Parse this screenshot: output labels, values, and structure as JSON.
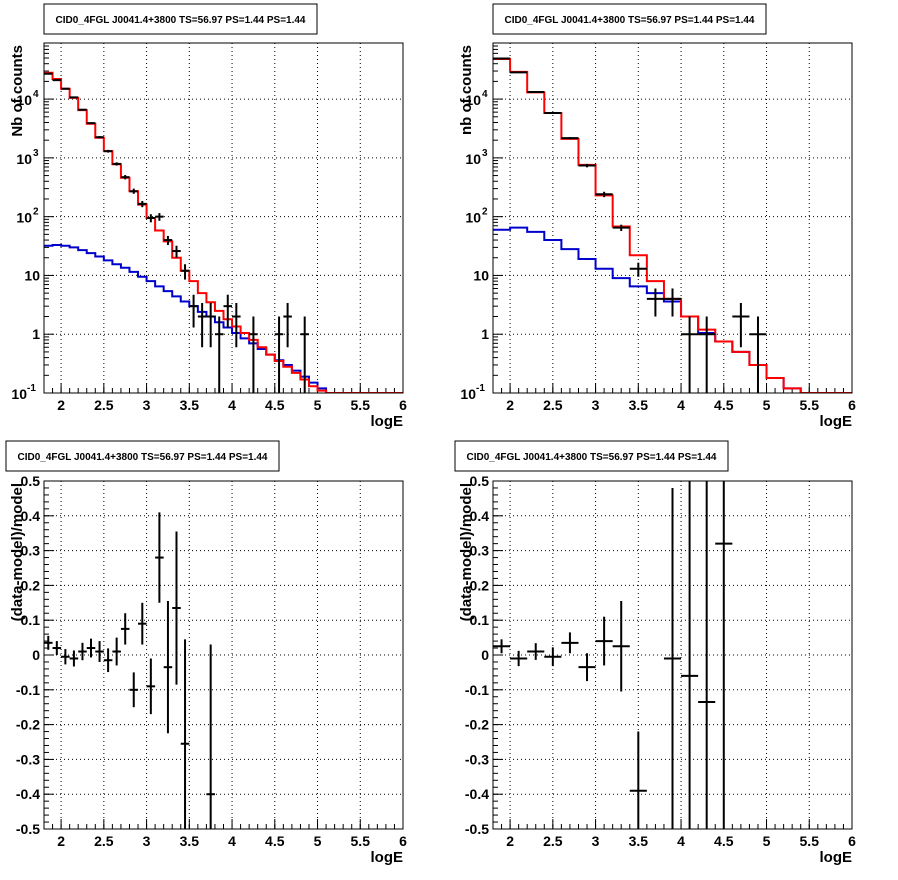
{
  "colors": {
    "data": "#000000",
    "model": "#ff0000",
    "background_model": "#0000cc",
    "grid": "#000000"
  },
  "chart_data": [
    {
      "id": "counts-left",
      "type": "line",
      "title": "CID0_4FGL J0041.4+3800 TS=56.97 PS=1.44 PS=1.44",
      "xlabel": "logE",
      "ylabel": "Nb of counts",
      "xlim": [
        1.8,
        6
      ],
      "ylim": [
        0.1,
        90000
      ],
      "log_y": true,
      "grid": true,
      "x_ticks": [
        "2",
        "2.5",
        "3",
        "3.5",
        "4",
        "4.5",
        "5",
        "5.5",
        "6"
      ],
      "y_ticks": [
        {
          "value": 0.1,
          "base": "10",
          "exp": "-1"
        },
        {
          "value": 1,
          "label": "1"
        },
        {
          "value": 10,
          "label": "10"
        },
        {
          "value": 100,
          "base": "10",
          "exp": "2"
        },
        {
          "value": 1000,
          "base": "10",
          "exp": "3"
        },
        {
          "value": 10000,
          "base": "10",
          "exp": "4"
        }
      ],
      "bin_edges": [
        1.8,
        1.9,
        2.0,
        2.1,
        2.2,
        2.3,
        2.4,
        2.5,
        2.6,
        2.7,
        2.8,
        2.9,
        3.0,
        3.1,
        3.2,
        3.3,
        3.4,
        3.5,
        3.6,
        3.7,
        3.8,
        3.9,
        4.0,
        4.1,
        4.2,
        4.3,
        4.4,
        4.5,
        4.6,
        4.7,
        4.8,
        4.9,
        5.0,
        5.1,
        5.2,
        5.3,
        5.4,
        5.5,
        5.6,
        5.7,
        5.8,
        5.9,
        6.0
      ],
      "series": [
        {
          "role": "model",
          "values": [
            28000,
            22000,
            15000,
            10500,
            6500,
            3800,
            2200,
            1300,
            780,
            460,
            270,
            160,
            95,
            58,
            38,
            20,
            12,
            8,
            5,
            3.5,
            2.5,
            1.8,
            1.35,
            1.05,
            0.8,
            0.6,
            0.45,
            0.35,
            0.28,
            0.22,
            0.17,
            0.13,
            0.11,
            0.1,
            0.1,
            0.1,
            0.1,
            0.1,
            0.1,
            0.1,
            0.1,
            0.1
          ]
        },
        {
          "role": "background_model",
          "values": [
            32,
            33,
            32,
            30,
            27,
            24,
            21,
            18,
            15.5,
            13.5,
            11.5,
            9.5,
            8,
            6.5,
            5.4,
            4.4,
            3.6,
            3,
            2.4,
            2,
            1.6,
            1.3,
            1.05,
            0.85,
            0.7,
            0.56,
            0.45,
            0.36,
            0.3,
            0.24,
            0.19,
            0.15,
            0.12,
            0.1,
            0.1,
            0.1,
            0.1,
            0.1,
            0.1,
            0.1,
            0.1,
            0.1
          ]
        },
        {
          "role": "data",
          "points": [
            {
              "x": 1.85,
              "y": 27000,
              "lo": 26500,
              "hi": 27500
            },
            {
              "x": 1.95,
              "y": 21000,
              "lo": 20600,
              "hi": 21400
            },
            {
              "x": 2.05,
              "y": 15000,
              "lo": 14700,
              "hi": 15300
            },
            {
              "x": 2.15,
              "y": 10700,
              "lo": 10500,
              "hi": 10900
            },
            {
              "x": 2.25,
              "y": 6600,
              "lo": 6450,
              "hi": 6750
            },
            {
              "x": 2.35,
              "y": 3900,
              "lo": 3780,
              "hi": 4020
            },
            {
              "x": 2.45,
              "y": 2250,
              "lo": 2150,
              "hi": 2350
            },
            {
              "x": 2.55,
              "y": 1300,
              "lo": 1230,
              "hi": 1370
            },
            {
              "x": 2.65,
              "y": 790,
              "lo": 740,
              "hi": 840
            },
            {
              "x": 2.75,
              "y": 470,
              "lo": 430,
              "hi": 510
            },
            {
              "x": 2.85,
              "y": 270,
              "lo": 245,
              "hi": 300
            },
            {
              "x": 2.95,
              "y": 165,
              "lo": 145,
              "hi": 185
            },
            {
              "x": 3.05,
              "y": 95,
              "lo": 80,
              "hi": 110
            },
            {
              "x": 3.15,
              "y": 100,
              "lo": 85,
              "hi": 115
            },
            {
              "x": 3.25,
              "y": 40,
              "lo": 33,
              "hi": 47
            },
            {
              "x": 3.35,
              "y": 26,
              "lo": 20,
              "hi": 32
            },
            {
              "x": 3.45,
              "y": 12,
              "lo": 8.5,
              "hi": 15.5
            },
            {
              "x": 3.55,
              "y": 3,
              "lo": 1.3,
              "hi": 4.7
            },
            {
              "x": 3.65,
              "y": 2,
              "lo": 0.6,
              "hi": 3.4
            },
            {
              "x": 3.75,
              "y": 2,
              "lo": 0.6,
              "hi": 3.4
            },
            {
              "x": 3.85,
              "y": 1,
              "lo": 0.1,
              "hi": 2
            },
            {
              "x": 3.95,
              "y": 3,
              "lo": 1.3,
              "hi": 4.7
            },
            {
              "x": 4.05,
              "y": 2,
              "lo": 0.6,
              "hi": 3.4
            },
            {
              "x": 4.25,
              "y": 1,
              "lo": 0.1,
              "hi": 2
            },
            {
              "x": 4.55,
              "y": 1,
              "lo": 0.1,
              "hi": 2
            },
            {
              "x": 4.65,
              "y": 2,
              "lo": 0.6,
              "hi": 3.4
            },
            {
              "x": 4.85,
              "y": 1,
              "lo": 0.1,
              "hi": 2
            }
          ]
        }
      ]
    },
    {
      "id": "counts-right",
      "type": "line",
      "title": "CID0_4FGL J0041.4+3800 TS=56.97 PS=1.44 PS=1.44",
      "xlabel": "logE",
      "ylabel": "nb of counts",
      "xlim": [
        1.8,
        6
      ],
      "ylim": [
        0.1,
        90000
      ],
      "log_y": true,
      "grid": true,
      "x_ticks": [
        "2",
        "2.5",
        "3",
        "3.5",
        "4",
        "4.5",
        "5",
        "5.5",
        "6"
      ],
      "y_ticks": [
        {
          "value": 0.1,
          "base": "10",
          "exp": "-1"
        },
        {
          "value": 1,
          "label": "1"
        },
        {
          "value": 10,
          "label": "10"
        },
        {
          "value": 100,
          "base": "10",
          "exp": "2"
        },
        {
          "value": 1000,
          "base": "10",
          "exp": "3"
        },
        {
          "value": 10000,
          "base": "10",
          "exp": "4"
        }
      ],
      "bin_edges": [
        1.8,
        2.0,
        2.2,
        2.4,
        2.6,
        2.8,
        3.0,
        3.2,
        3.4,
        3.6,
        3.8,
        4.0,
        4.2,
        4.4,
        4.6,
        4.8,
        5.0,
        5.2,
        5.4,
        5.6,
        5.8,
        6.0
      ],
      "series": [
        {
          "role": "model",
          "values": [
            48000,
            29000,
            13000,
            5800,
            2100,
            760,
            230,
            68,
            22,
            8,
            4,
            2,
            1.2,
            0.75,
            0.5,
            0.3,
            0.18,
            0.12,
            0.1,
            0.1,
            0.1
          ]
        },
        {
          "role": "background_model",
          "values": [
            60,
            65,
            55,
            40,
            28,
            19,
            13,
            9,
            6.5,
            5,
            3.6,
            2,
            1.05,
            0.75,
            0.5,
            0.3,
            0.18,
            0.12,
            0.1,
            0.1,
            0.1
          ]
        },
        {
          "role": "data",
          "points": [
            {
              "x": 1.9,
              "y": 49000,
              "lo": 48500,
              "hi": 49500
            },
            {
              "x": 2.1,
              "y": 28500,
              "lo": 28100,
              "hi": 28900
            },
            {
              "x": 2.3,
              "y": 13200,
              "lo": 12950,
              "hi": 13450
            },
            {
              "x": 2.5,
              "y": 5800,
              "lo": 5650,
              "hi": 5950
            },
            {
              "x": 2.7,
              "y": 2170,
              "lo": 2080,
              "hi": 2260
            },
            {
              "x": 2.9,
              "y": 740,
              "lo": 690,
              "hi": 790
            },
            {
              "x": 3.1,
              "y": 240,
              "lo": 215,
              "hi": 265
            },
            {
              "x": 3.3,
              "y": 65,
              "lo": 57,
              "hi": 73
            },
            {
              "x": 3.5,
              "y": 13,
              "lo": 9.5,
              "hi": 16.5
            },
            {
              "x": 3.7,
              "y": 4,
              "lo": 2,
              "hi": 6
            },
            {
              "x": 3.9,
              "y": 4,
              "lo": 2,
              "hi": 6
            },
            {
              "x": 4.1,
              "y": 1,
              "lo": 0.1,
              "hi": 2
            },
            {
              "x": 4.3,
              "y": 1,
              "lo": 0.1,
              "hi": 2
            },
            {
              "x": 4.7,
              "y": 2,
              "lo": 0.6,
              "hi": 3.4
            },
            {
              "x": 4.9,
              "y": 1,
              "lo": 0.1,
              "hi": 2
            }
          ]
        }
      ]
    },
    {
      "id": "residuals-left",
      "type": "scatter",
      "title": "CID0_4FGL J0041.4+3800 TS=56.97 PS=1.44 PS=1.44",
      "xlabel": "logE",
      "ylabel": "(data-model)/model",
      "xlim": [
        1.8,
        6
      ],
      "ylim": [
        -0.5,
        0.5
      ],
      "grid": true,
      "x_ticks": [
        "2",
        "2.5",
        "3",
        "3.5",
        "4",
        "4.5",
        "5",
        "5.5",
        "6"
      ],
      "y_ticks": [
        "-0.5",
        "-0.4",
        "-0.3",
        "-0.2",
        "-0.1",
        "0",
        "0.1",
        "0.2",
        "0.3",
        "0.4",
        "0.5"
      ],
      "bin_half_width": 0.05,
      "series": [
        {
          "role": "data",
          "points": [
            {
              "x": 1.85,
              "y": 0.035,
              "err": 0.02
            },
            {
              "x": 1.95,
              "y": 0.02,
              "err": 0.02
            },
            {
              "x": 2.05,
              "y": -0.005,
              "err": 0.022
            },
            {
              "x": 2.15,
              "y": -0.01,
              "err": 0.023
            },
            {
              "x": 2.25,
              "y": 0.01,
              "err": 0.025
            },
            {
              "x": 2.35,
              "y": 0.02,
              "err": 0.027
            },
            {
              "x": 2.45,
              "y": 0.01,
              "err": 0.03
            },
            {
              "x": 2.55,
              "y": -0.015,
              "err": 0.034
            },
            {
              "x": 2.65,
              "y": 0.01,
              "err": 0.04
            },
            {
              "x": 2.75,
              "y": 0.075,
              "err": 0.045
            },
            {
              "x": 2.85,
              "y": -0.1,
              "err": 0.05
            },
            {
              "x": 2.95,
              "y": 0.09,
              "err": 0.06
            },
            {
              "x": 3.05,
              "y": -0.09,
              "err": 0.08
            },
            {
              "x": 3.15,
              "y": 0.28,
              "err": 0.13
            },
            {
              "x": 3.25,
              "y": -0.035,
              "err": 0.19
            },
            {
              "x": 3.35,
              "y": 0.135,
              "err": 0.22
            },
            {
              "x": 3.45,
              "y": -0.255,
              "err": 0.3
            },
            {
              "x": 3.75,
              "y": -0.4,
              "err": 0.43
            }
          ]
        }
      ]
    },
    {
      "id": "residuals-right",
      "type": "scatter",
      "title": "CID0_4FGL J0041.4+3800 TS=56.97 PS=1.44 PS=1.44",
      "xlabel": "logE",
      "ylabel": "(data-model)/model",
      "xlim": [
        1.8,
        6
      ],
      "ylim": [
        -0.5,
        0.5
      ],
      "grid": true,
      "x_ticks": [
        "2",
        "2.5",
        "3",
        "3.5",
        "4",
        "4.5",
        "5",
        "5.5",
        "6"
      ],
      "y_ticks": [
        "-0.5",
        "-0.4",
        "-0.3",
        "-0.2",
        "-0.1",
        "0",
        "0.1",
        "0.2",
        "0.3",
        "0.4",
        "0.5"
      ],
      "bin_half_width": 0.1,
      "series": [
        {
          "role": "data",
          "points": [
            {
              "x": 1.9,
              "y": 0.025,
              "err": 0.02
            },
            {
              "x": 2.1,
              "y": -0.01,
              "err": 0.022
            },
            {
              "x": 2.3,
              "y": 0.01,
              "err": 0.024
            },
            {
              "x": 2.5,
              "y": -0.005,
              "err": 0.027
            },
            {
              "x": 2.7,
              "y": 0.035,
              "err": 0.03
            },
            {
              "x": 2.9,
              "y": -0.035,
              "err": 0.04
            },
            {
              "x": 3.1,
              "y": 0.04,
              "err": 0.07
            },
            {
              "x": 3.3,
              "y": 0.025,
              "err": 0.13
            },
            {
              "x": 3.5,
              "y": -0.39,
              "err": 0.17
            },
            {
              "x": 3.9,
              "y": -0.01,
              "err": 0.49
            },
            {
              "x": 4.1,
              "y": -0.06,
              "err": 0.95
            },
            {
              "x": 4.3,
              "y": -0.135,
              "err": 0.95
            },
            {
              "x": 4.5,
              "y": 0.32,
              "err": 1.4
            }
          ]
        }
      ]
    }
  ]
}
